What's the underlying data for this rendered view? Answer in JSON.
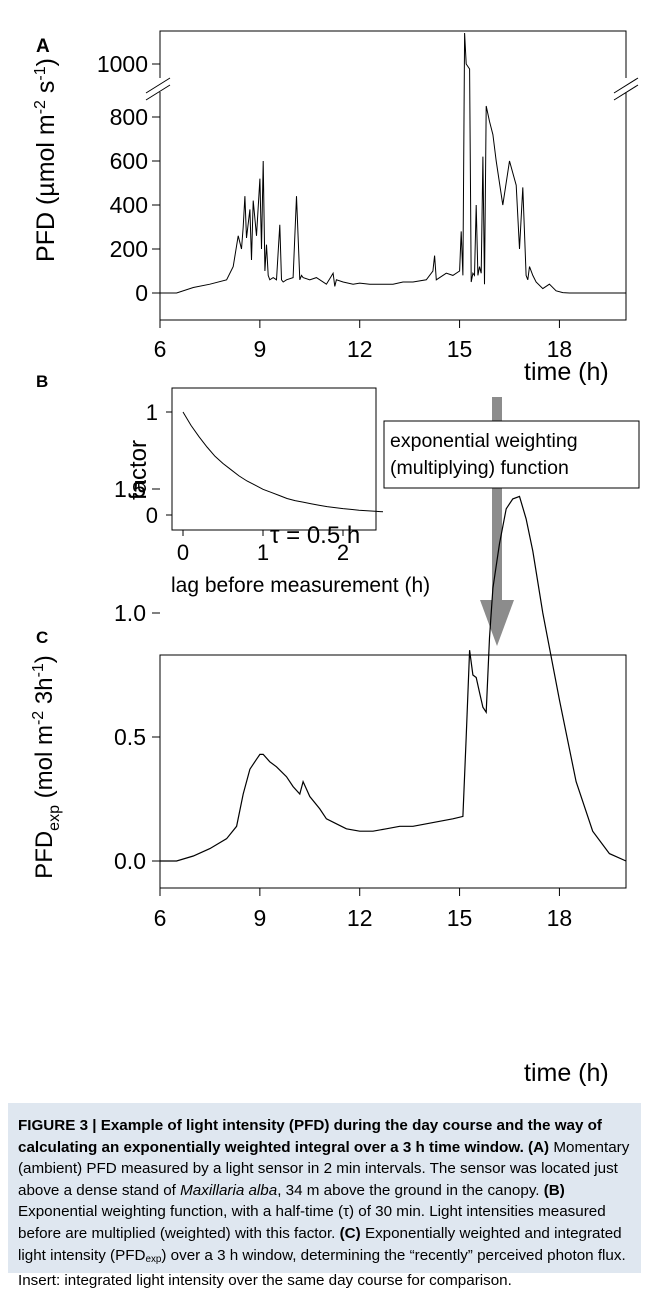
{
  "chart_data": [
    {
      "panel": "A",
      "type": "line",
      "ylabel_base": "PFD (µmol m",
      "ylabel_sup1": "-2",
      "ylabel_mid": " s",
      "ylabel_sup2": "-1",
      "ylabel_end": ")",
      "xlabel": "time (h)",
      "xlim": [
        6,
        20
      ],
      "xticks": [
        6,
        9,
        12,
        15,
        18
      ],
      "ylim": [
        0,
        800
      ],
      "yticks": [
        0,
        200,
        400,
        600,
        800
      ],
      "ybreak_tick": 1000,
      "axis_break": true,
      "series": [
        {
          "x": [
            6.0,
            6.5,
            7.0,
            7.5,
            8.0,
            8.2,
            8.35,
            8.45,
            8.5,
            8.55,
            8.6,
            8.7,
            8.75,
            8.8,
            8.9,
            9.0,
            9.05,
            9.1,
            9.15,
            9.2,
            9.25,
            9.3,
            9.4,
            9.5,
            9.6,
            9.65,
            9.7,
            9.8,
            10.0,
            10.1,
            10.2,
            10.25,
            10.3,
            10.5,
            10.7,
            11.0,
            11.2,
            11.25,
            11.3,
            11.5,
            11.8,
            12.0,
            12.3,
            12.6,
            13.0,
            13.3,
            13.6,
            14.0,
            14.2,
            14.25,
            14.3,
            14.6,
            14.8,
            15.0,
            15.05,
            15.1,
            15.15,
            15.2,
            15.3,
            15.35,
            15.4,
            15.45,
            15.5,
            15.55,
            15.6,
            15.65,
            15.7,
            15.75,
            15.8,
            15.9,
            16.0,
            16.1,
            16.3,
            16.5,
            16.7,
            16.8,
            16.9,
            17.0,
            17.05,
            17.1,
            17.2,
            17.3,
            17.5,
            17.7,
            17.9,
            18.1,
            18.3,
            18.5,
            19.0,
            19.5,
            20.0
          ],
          "y": [
            0,
            0,
            25,
            40,
            60,
            120,
            260,
            200,
            300,
            440,
            250,
            380,
            150,
            420,
            260,
            520,
            200,
            600,
            100,
            220,
            80,
            60,
            70,
            60,
            310,
            60,
            50,
            60,
            70,
            440,
            60,
            80,
            70,
            60,
            70,
            40,
            90,
            30,
            60,
            50,
            40,
            45,
            40,
            40,
            40,
            50,
            50,
            60,
            100,
            170,
            60,
            90,
            80,
            100,
            280,
            80,
            1150,
            1000,
            980,
            50,
            90,
            80,
            400,
            80,
            120,
            90,
            620,
            40,
            850,
            780,
            720,
            600,
            400,
            600,
            490,
            200,
            480,
            80,
            60,
            120,
            80,
            50,
            20,
            40,
            10,
            2,
            0,
            0,
            0,
            0,
            0
          ]
        }
      ]
    },
    {
      "panel": "B",
      "type": "line",
      "ylabel": "factor",
      "xlabel": "lag before measurement (h)",
      "xlim": [
        0,
        2.5
      ],
      "xticks": [
        0,
        1,
        2
      ],
      "ylim": [
        0,
        1
      ],
      "yticks": [
        0,
        1
      ],
      "annotation": "τ = 0.5 h",
      "series": [
        {
          "x": [
            0,
            0.1,
            0.2,
            0.3,
            0.4,
            0.5,
            0.6,
            0.7,
            0.8,
            0.9,
            1.0,
            1.1,
            1.2,
            1.3,
            1.4,
            1.5,
            1.6,
            1.7,
            1.8,
            1.9,
            2.0,
            2.1,
            2.2,
            2.3,
            2.4,
            2.5
          ],
          "y": [
            1.0,
            0.87,
            0.76,
            0.66,
            0.57,
            0.5,
            0.44,
            0.38,
            0.33,
            0.29,
            0.25,
            0.22,
            0.19,
            0.16,
            0.14,
            0.125,
            0.11,
            0.095,
            0.082,
            0.072,
            0.062,
            0.054,
            0.047,
            0.041,
            0.036,
            0.031
          ]
        }
      ]
    },
    {
      "panel": "C",
      "type": "line",
      "ylabel_base": "PFD",
      "ylabel_sub": "exp",
      "ylabel_mid": " (mol m",
      "ylabel_sup1": "-2",
      "ylabel_mid2": " 3h",
      "ylabel_sup2": "-1",
      "ylabel_end": ")",
      "xlabel": "time (h)",
      "xlim": [
        6,
        20
      ],
      "xticks": [
        6,
        9,
        12,
        15,
        18
      ],
      "ylim": [
        -0.1,
        1.55
      ],
      "yticks": [
        0.0,
        0.5,
        1.0,
        1.5
      ],
      "ytick_labels": [
        "0.0",
        "0.5",
        "1.0",
        "1.5"
      ],
      "series": [
        {
          "x": [
            6.0,
            6.5,
            7.0,
            7.5,
            8.0,
            8.3,
            8.5,
            8.7,
            8.9,
            9.0,
            9.1,
            9.3,
            9.5,
            9.8,
            10.0,
            10.2,
            10.3,
            10.5,
            10.8,
            11.0,
            11.3,
            11.6,
            12.0,
            12.4,
            12.8,
            13.2,
            13.6,
            14.0,
            14.4,
            14.8,
            15.1,
            15.2,
            15.3,
            15.4,
            15.5,
            15.6,
            15.7,
            15.8,
            15.9,
            16.0,
            16.2,
            16.4,
            16.6,
            16.8,
            17.0,
            17.2,
            17.5,
            18.0,
            18.5,
            19.0,
            19.5,
            20.0
          ],
          "y": [
            0.0,
            0.0,
            0.02,
            0.05,
            0.09,
            0.14,
            0.27,
            0.37,
            0.41,
            0.43,
            0.43,
            0.4,
            0.38,
            0.34,
            0.3,
            0.27,
            0.32,
            0.26,
            0.21,
            0.17,
            0.15,
            0.13,
            0.12,
            0.12,
            0.13,
            0.14,
            0.14,
            0.15,
            0.16,
            0.17,
            0.18,
            0.5,
            0.85,
            0.75,
            0.74,
            0.68,
            0.62,
            0.6,
            0.9,
            1.1,
            1.28,
            1.42,
            1.46,
            1.47,
            1.38,
            1.25,
            1.0,
            0.65,
            0.32,
            0.12,
            0.03,
            0.0
          ]
        }
      ]
    }
  ],
  "panel_labels": {
    "a": "A",
    "b": "B",
    "c": "C"
  },
  "insert": {
    "line1": "exponential weighting",
    "line2": "(multiplying) function",
    "arrow_color": "#8c8c8c"
  },
  "caption": {
    "bg_color": "#dfe7f0",
    "title": "FIGURE 3 | Example of light intensity (PFD) during the day course and the way of calculating an exponentially weighted integral over a 3 h time window.",
    "a_label": "(A)",
    "a_text": " Momentary (ambient) PFD measured by a light sensor in 2 min intervals. The sensor was located just above a dense stand of ",
    "species": "Maxillaria alba",
    "a_text2": ", 34 m above the ground in the canopy. ",
    "b_label": "(B)",
    "b_text": " Exponential weighting function, with a half-time (τ) of 30 min. Light intensities measured before are multiplied (weighted) with this factor. ",
    "c_label": "(C)",
    "c_text1": " Exponentially weighted and integrated light intensity (PFD",
    "c_sub": "exp",
    "c_text2": ") over a 3 h window, determining the “recently” perceived photon flux. Insert: integrated light intensity over the same day course for comparison."
  }
}
